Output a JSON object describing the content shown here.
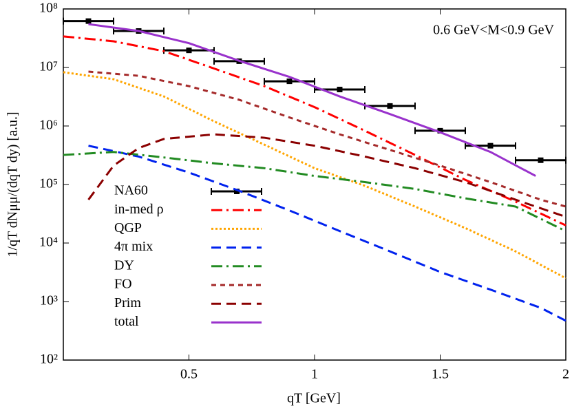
{
  "chart_data": {
    "type": "line",
    "xlabel": "qT [GeV]",
    "ylabel": "1/qT dNμμ/(dqT dy) [a.u.]",
    "annotation": "0.6 GeV<M<0.9 GeV",
    "log_y": true,
    "xlim": [
      0,
      2
    ],
    "xticks": [
      0.5,
      1,
      1.5,
      2
    ],
    "ylim": [
      100,
      100000000
    ],
    "yticks": [
      {
        "value": 100,
        "label": "10²"
      },
      {
        "value": 1000,
        "label": "10³"
      },
      {
        "value": 10000,
        "label": "10⁴"
      },
      {
        "value": 100000,
        "label": "10⁵"
      },
      {
        "value": 1000000,
        "label": "10⁶"
      },
      {
        "value": 10000000,
        "label": "10⁷"
      },
      {
        "value": 100000000,
        "label": "10⁸"
      }
    ],
    "series": [
      {
        "name": "NA60",
        "color": "#000000",
        "style": "errorbar",
        "x": [
          0.1,
          0.3,
          0.5,
          0.7,
          0.9,
          1.1,
          1.3,
          1.5,
          1.7,
          1.9
        ],
        "x_errors": [
          0.1,
          0.1,
          0.1,
          0.1,
          0.1,
          0.1,
          0.1,
          0.1,
          0.1,
          0.1
        ],
        "values": [
          62000000,
          42000000,
          19600000,
          12800000,
          5800000,
          4200000,
          2200000,
          830000,
          460000,
          260000
        ]
      },
      {
        "name": "in-med ρ",
        "color": "#ff0000",
        "style": "dashdot",
        "x": [
          0,
          0.2,
          0.4,
          0.6,
          0.8,
          1.0,
          1.2,
          1.4,
          1.6,
          1.8,
          2.0
        ],
        "values": [
          34000000,
          28000000,
          19000000,
          9600000,
          4800000,
          2100000,
          830000,
          320000,
          120000,
          51000,
          20000
        ]
      },
      {
        "name": "QGP",
        "color": "#ffa500",
        "style": "dotted",
        "x": [
          0,
          0.2,
          0.4,
          0.6,
          0.8,
          1.0,
          1.2,
          1.4,
          1.6,
          1.8,
          2.0
        ],
        "values": [
          8300000,
          6300000,
          3200000,
          1200000,
          480000,
          190000,
          95000,
          42000,
          18000,
          7200,
          2500
        ]
      },
      {
        "name": "4π mix",
        "color": "#0022ee",
        "style": "dashed",
        "x": [
          0.1,
          0.3,
          0.5,
          0.7,
          0.9,
          1.1,
          1.3,
          1.5,
          1.7,
          1.9,
          2.0
        ],
        "values": [
          460000,
          300000,
          160000,
          78000,
          36000,
          16000,
          7200,
          3200,
          1600,
          780,
          470
        ]
      },
      {
        "name": "DY",
        "color": "#228b22",
        "style": "dashdot",
        "x": [
          0,
          0.2,
          0.4,
          0.6,
          0.8,
          1.0,
          1.2,
          1.4,
          1.6,
          1.8,
          2.0
        ],
        "values": [
          320000,
          360000,
          290000,
          230000,
          190000,
          140000,
          110000,
          84000,
          58000,
          42000,
          16000
        ]
      },
      {
        "name": "FO",
        "color": "#a52a2a",
        "style": "shortdash",
        "x": [
          0.1,
          0.3,
          0.5,
          0.7,
          0.9,
          1.1,
          1.3,
          1.5,
          1.7,
          1.9,
          2.0
        ],
        "values": [
          8500000,
          7200000,
          4800000,
          2800000,
          1400000,
          720000,
          390000,
          210000,
          110000,
          55000,
          42000
        ]
      },
      {
        "name": "Prim",
        "color": "#8b0000",
        "style": "dashed",
        "x": [
          0.1,
          0.2,
          0.3,
          0.4,
          0.6,
          0.8,
          1.0,
          1.2,
          1.4,
          1.6,
          1.8,
          2.0
        ],
        "values": [
          55000,
          210000,
          420000,
          600000,
          720000,
          630000,
          460000,
          300000,
          190000,
          110000,
          55000,
          28000
        ]
      },
      {
        "name": "total",
        "color": "#9932cc",
        "style": "solid",
        "x": [
          0.1,
          0.3,
          0.5,
          0.7,
          0.9,
          1.1,
          1.3,
          1.5,
          1.7,
          1.88
        ],
        "values": [
          55000000,
          42000000,
          26000000,
          13000000,
          6900000,
          3200000,
          1600000,
          780000,
          360000,
          140000
        ]
      }
    ]
  }
}
